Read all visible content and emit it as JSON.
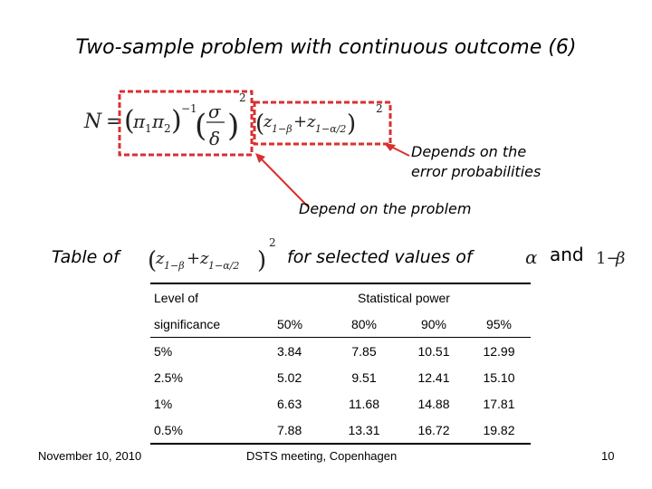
{
  "slide": {
    "title": "Two-sample problem with continuous outcome (6)",
    "callouts": {
      "error": [
        "Depends on the",
        "error probabilities"
      ],
      "problem": "Depend on the problem"
    },
    "caption": {
      "prefix": "Table of",
      "middle": "for selected values of",
      "and": "and"
    },
    "table": {
      "header1": [
        "Level of",
        "Statistical power"
      ],
      "header2": [
        "significance",
        "50%",
        "80%",
        "90%",
        "95%"
      ],
      "rows": [
        [
          "5%",
          "3.84",
          "7.85",
          "10.51",
          "12.99"
        ],
        [
          "2.5%",
          "5.02",
          "9.51",
          "12.41",
          "15.10"
        ],
        [
          "1%",
          "6.63",
          "11.68",
          "14.88",
          "17.81"
        ],
        [
          "0.5%",
          "7.88",
          "13.31",
          "16.72",
          "19.82"
        ]
      ]
    },
    "footer": {
      "date": "November 10, 2010",
      "center": "DSTS meeting, Copenhagen",
      "page": "10"
    },
    "colors": {
      "highlight_box": "#d93030"
    }
  }
}
